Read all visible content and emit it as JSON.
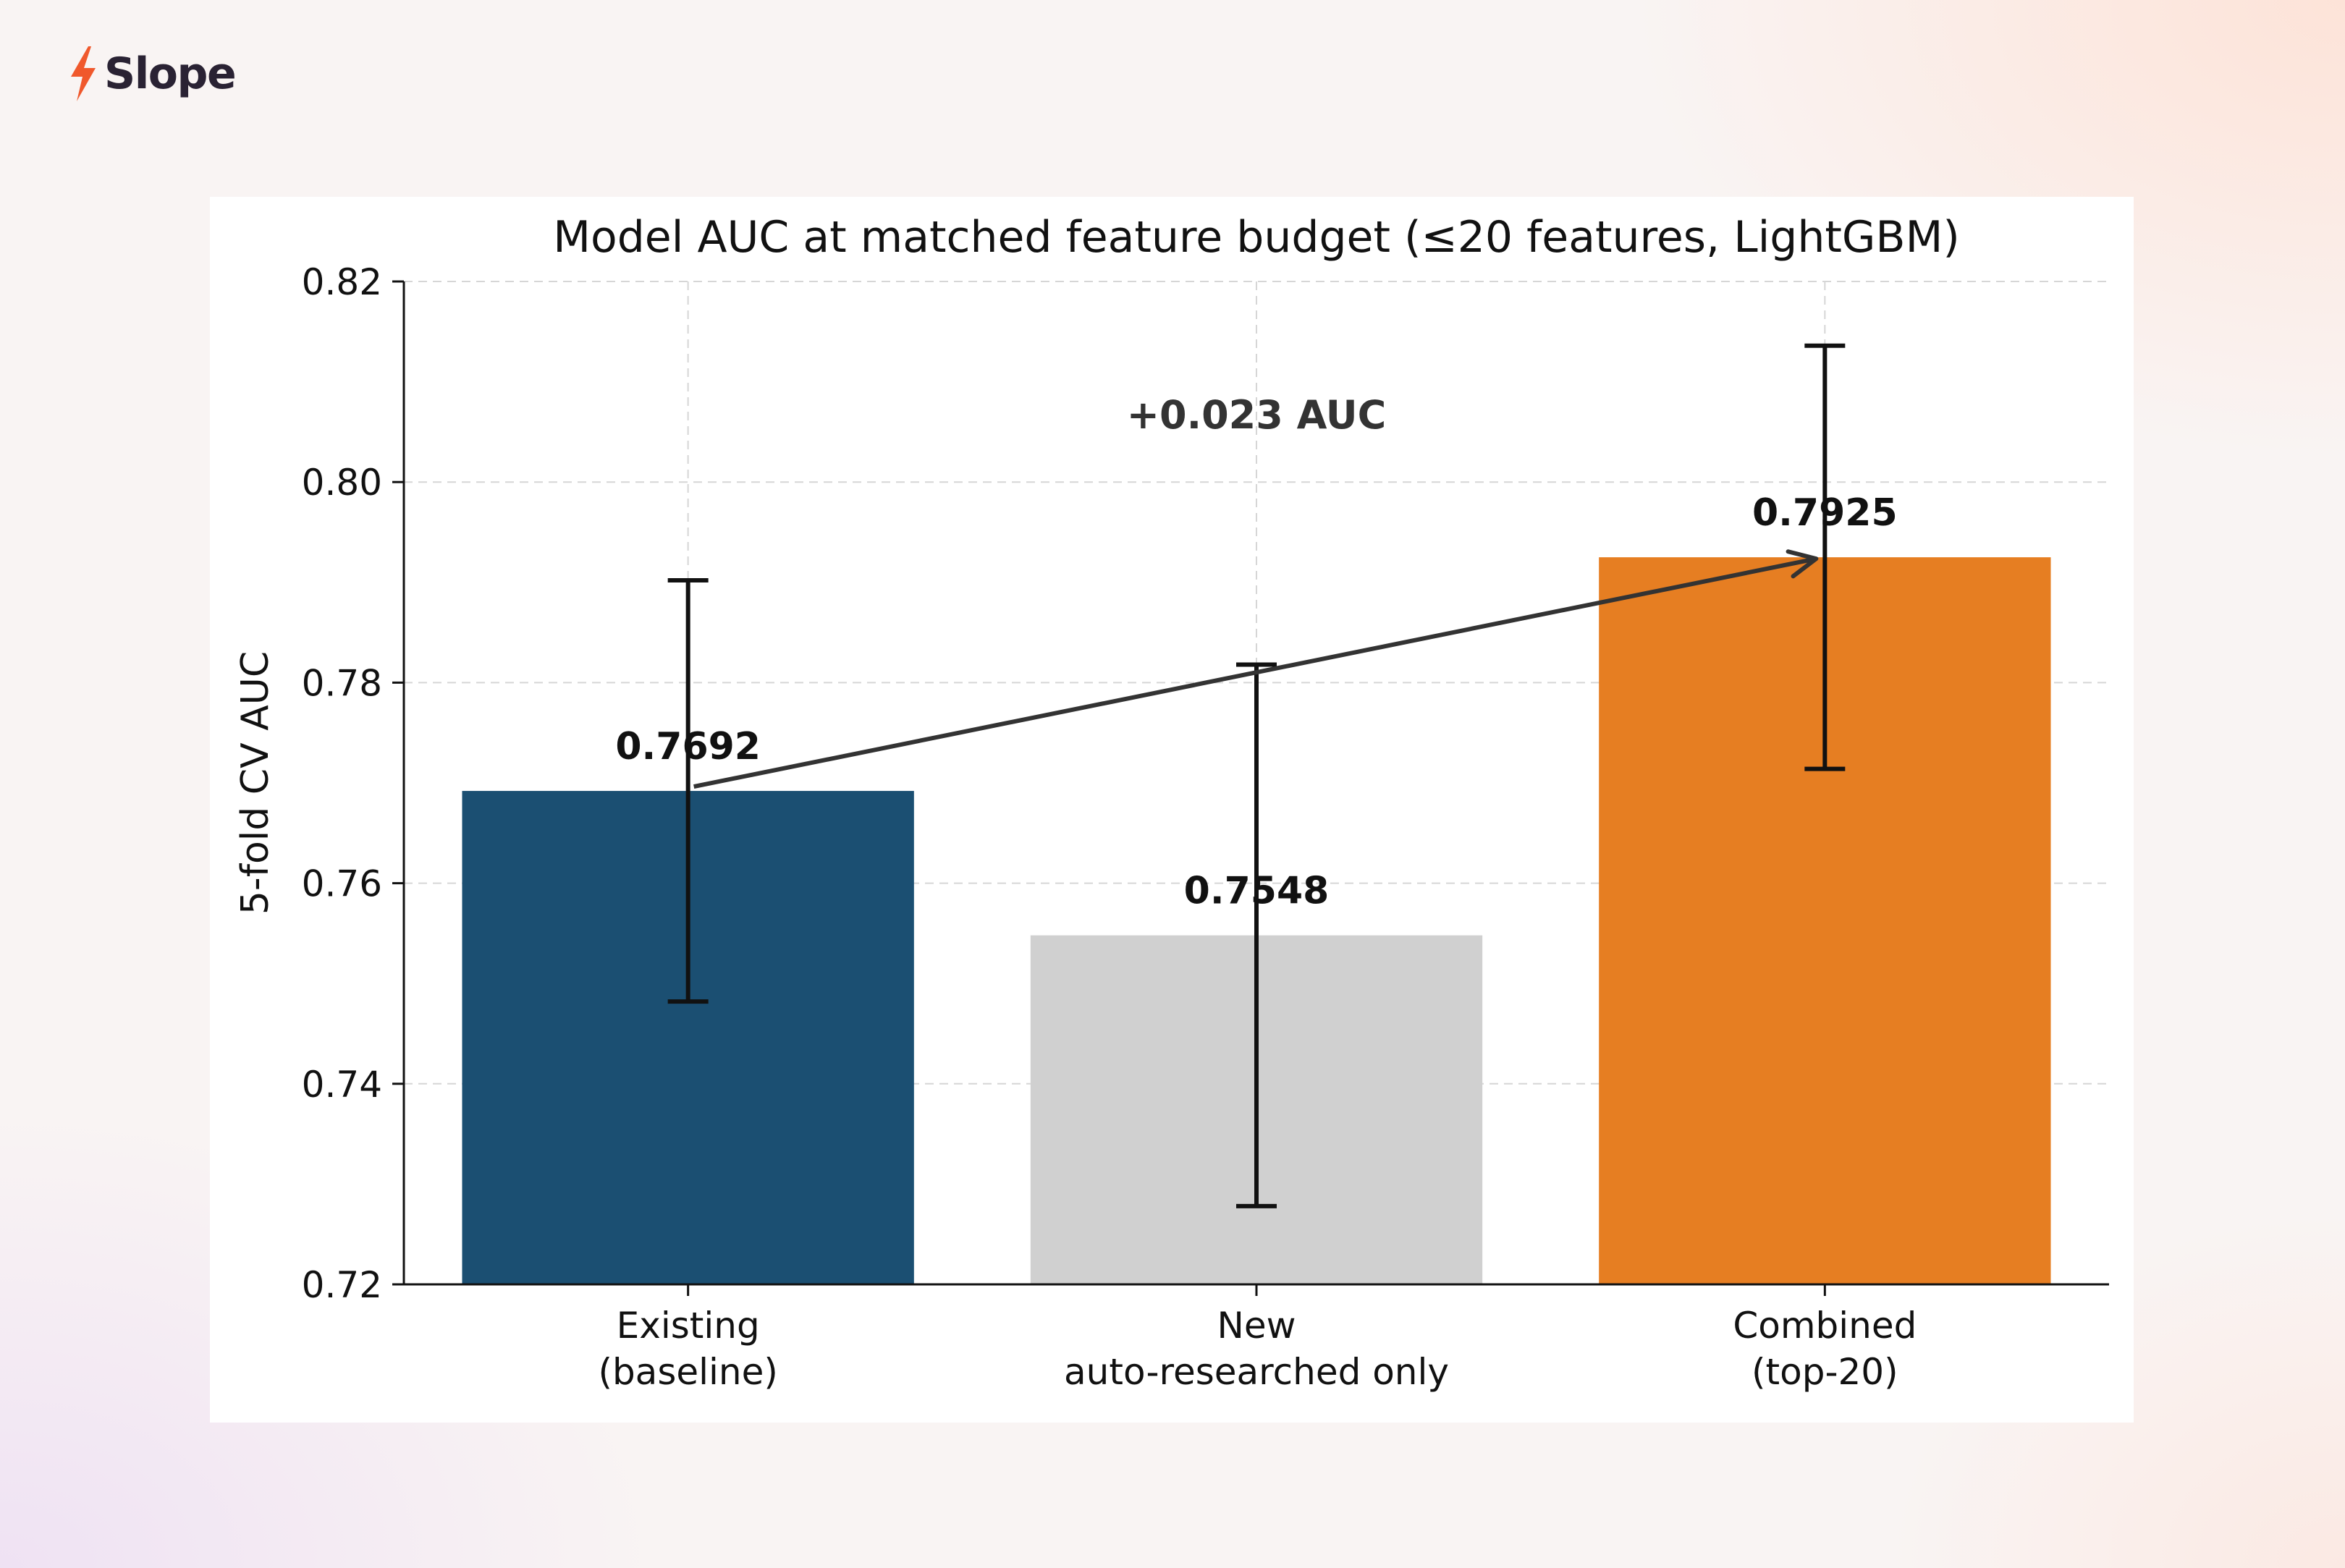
{
  "brand": {
    "name": "Slope",
    "icon": "lightning-bolt-icon",
    "icon_color": "#f0582c"
  },
  "chart_data": {
    "type": "bar",
    "title": "Model AUC at matched feature budget (≤20 features, LightGBM)",
    "xlabel": "",
    "ylabel": "5-fold CV AUC",
    "ylim": [
      0.72,
      0.82
    ],
    "yticks": [
      "0.72",
      "0.74",
      "0.76",
      "0.78",
      "0.80",
      "0.82"
    ],
    "grid": true,
    "categories": [
      [
        "Existing",
        "(baseline)"
      ],
      [
        "New",
        "auto-researched only"
      ],
      [
        "Combined",
        "(top-20)"
      ]
    ],
    "values": [
      0.7692,
      0.7548,
      0.7925
    ],
    "value_labels": [
      "0.7692",
      "0.7548",
      "0.7925"
    ],
    "error_low": [
      0.7482,
      0.7278,
      0.7714
    ],
    "error_high": [
      0.7902,
      0.7818,
      0.8136
    ],
    "colors": [
      "#1b4f72",
      "#d0d0d0",
      "#e67e22"
    ],
    "annotation": {
      "text": "+0.023 AUC",
      "from_category": 0,
      "to_category": 2
    }
  }
}
